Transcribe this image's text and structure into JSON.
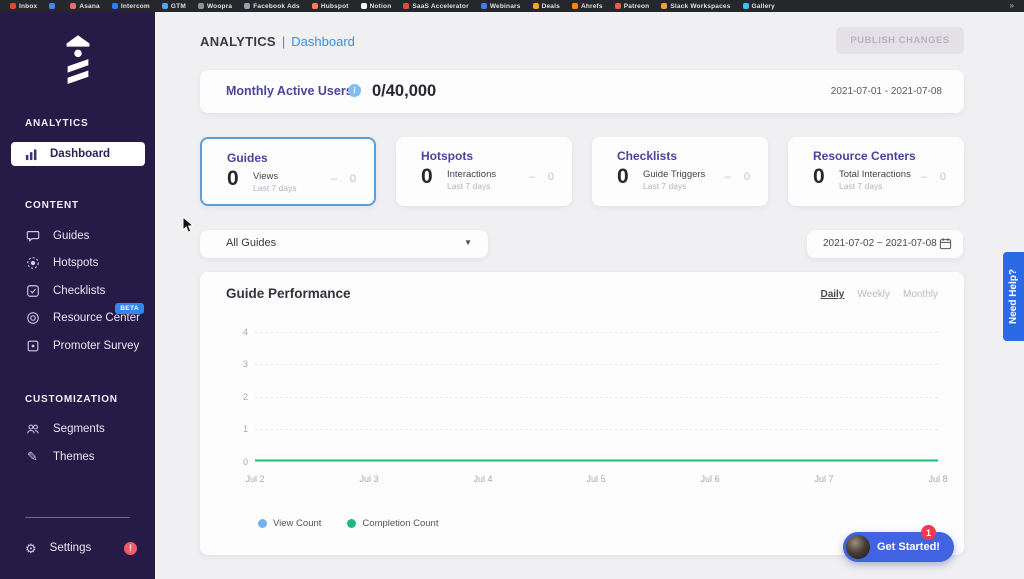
{
  "bookmarks": {
    "overflow": "»",
    "items": [
      {
        "label": "Inbox",
        "icon": "gmail-icon",
        "icon_color": "#ea4335"
      },
      {
        "label": "",
        "icon": "google-calendar-icon",
        "icon_color": "#4285f4"
      },
      {
        "label": "Asana",
        "icon": "asana-icon",
        "icon_color": "#f06a6a"
      },
      {
        "label": "Intercom",
        "icon": "intercom-icon",
        "icon_color": "#2f7ef7"
      },
      {
        "label": "GTM",
        "icon": "gtm-icon",
        "icon_color": "#4fa7f8"
      },
      {
        "label": "Woopra",
        "icon": "woopra-icon",
        "icon_color": "#8d9196"
      },
      {
        "label": "Facebook Ads",
        "icon": "facebook-ads-icon",
        "icon_color": "#9aa0a6"
      },
      {
        "label": "Hubspot",
        "icon": "hubspot-icon",
        "icon_color": "#ff7a59"
      },
      {
        "label": "Notion",
        "icon": "notion-icon",
        "icon_color": "#f5f5f5"
      },
      {
        "label": "SaaS Accelerator",
        "icon": "saas-accelerator-icon",
        "icon_color": "#e04a3f"
      },
      {
        "label": "Webinars",
        "icon": "webinars-icon",
        "icon_color": "#3d7ff0"
      },
      {
        "label": "Deals",
        "icon": "deals-icon",
        "icon_color": "#f5a623"
      },
      {
        "label": "Ahrefs",
        "icon": "ahrefs-icon",
        "icon_color": "#ff8800"
      },
      {
        "label": "Patreon",
        "icon": "patreon-icon",
        "icon_color": "#e85b46"
      },
      {
        "label": "Slack Workspaces",
        "icon": "slack-icon",
        "icon_color": "#e8a33d"
      },
      {
        "label": "Gallery",
        "icon": "gallery-icon",
        "icon_color": "#36c5f0"
      }
    ]
  },
  "sidebar": {
    "sections": [
      {
        "heading": "ANALYTICS",
        "items": [
          {
            "label": "Dashboard",
            "icon": "bar-chart-icon",
            "active": true
          }
        ]
      },
      {
        "heading": "CONTENT",
        "items": [
          {
            "label": "Guides",
            "icon": "chat-bubble-icon"
          },
          {
            "label": "Hotspots",
            "icon": "hotspot-target-icon"
          },
          {
            "label": "Checklists",
            "icon": "checklist-icon"
          },
          {
            "label": "Resource Center",
            "icon": "life-ring-icon",
            "badge": "BETA"
          },
          {
            "label": "Promoter Survey",
            "icon": "survey-icon"
          }
        ]
      },
      {
        "heading": "CUSTOMIZATION",
        "items": [
          {
            "label": "Segments",
            "icon": "users-icon"
          },
          {
            "label": "Themes",
            "icon": "pen-icon"
          }
        ]
      }
    ],
    "settings": {
      "label": "Settings",
      "icon": "gear-icon",
      "alert_badge": "!"
    }
  },
  "header": {
    "breadcrumb_root": "ANALYTICS",
    "breadcrumb_separator": "|",
    "breadcrumb_current": "Dashboard",
    "publish_button": "PUBLISH CHANGES"
  },
  "mau": {
    "label": "Monthly Active Users",
    "info_icon": "i",
    "value": "0/40,000",
    "date_range": "2021-07-01 - 2021-07-08"
  },
  "stat_cards": [
    {
      "title": "Guides",
      "value": "0",
      "metric": "Views",
      "period": "Last 7 days",
      "delta_dash": "–",
      "delta_value": "0",
      "selected": true
    },
    {
      "title": "Hotspots",
      "value": "0",
      "metric": "Interactions",
      "period": "Last 7 days",
      "delta_dash": "–",
      "delta_value": "0",
      "selected": false
    },
    {
      "title": "Checklists",
      "value": "0",
      "metric": "Guide Triggers",
      "period": "Last 7 days",
      "delta_dash": "–",
      "delta_value": "0",
      "selected": false
    },
    {
      "title": "Resource Centers",
      "value": "0",
      "metric": "Total Interactions",
      "period": "Last 7 days",
      "delta_dash": "–",
      "delta_value": "0",
      "selected": false
    }
  ],
  "filters": {
    "guide_select": {
      "value": "All Guides",
      "caret": "▼"
    },
    "date_range": {
      "value": "2021-07-02 ~ 2021-07-08",
      "icon": "calendar-icon"
    }
  },
  "chart_data": {
    "type": "line",
    "title": "Guide Performance",
    "tabs": [
      "Daily",
      "Weekly",
      "Monthly"
    ],
    "active_tab": "Daily",
    "x": [
      "Jul 2",
      "Jul 3",
      "Jul 4",
      "Jul 5",
      "Jul 6",
      "Jul 7",
      "Jul 8"
    ],
    "series": [
      {
        "name": "View Count",
        "color": "#6db4f0",
        "values": [
          0,
          0,
          0,
          0,
          0,
          0,
          0
        ]
      },
      {
        "name": "Completion Count",
        "color": "#1fb97b",
        "values": [
          0,
          0,
          0,
          0,
          0,
          0,
          0
        ]
      }
    ],
    "ylim": [
      0,
      4
    ],
    "yticks": [
      4,
      3,
      2,
      1,
      0
    ],
    "grid": "horizontal-dashed",
    "legend_position": "bottom-left"
  },
  "help": {
    "need_help": "Need Help?",
    "get_started": "Get Started!",
    "get_started_badge": "1"
  },
  "colors": {
    "sidebar_purple": "#251b46",
    "accent_blue": "#3c8ed6",
    "selected_card_border": "#57a0da",
    "title_purple": "#4a4499",
    "royal_blue": "#4263e1",
    "beta_blue": "#2e86f5",
    "alert_red": "#f25a6b",
    "green_line": "#1fb97b",
    "legend_blue": "#6db4f0"
  }
}
